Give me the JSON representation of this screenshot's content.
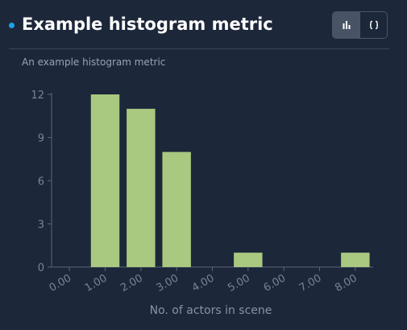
{
  "header": {
    "title": "Example histogram metric",
    "description": "An example histogram metric"
  },
  "view_toggle": {
    "histogram_icon": "bar-chart-icon",
    "code_icon": "code-braces-icon",
    "active": "histogram"
  },
  "colors": {
    "bar": "#a8c97f",
    "dot": "#1aa3e8",
    "background": "#1d273a"
  },
  "chart_data": {
    "type": "bar",
    "categories": [
      "0.00",
      "1.00",
      "2.00",
      "3.00",
      "4.00",
      "5.00",
      "6.00",
      "7.00",
      "8.00"
    ],
    "values": [
      0,
      12,
      11,
      8,
      0,
      1,
      0,
      0,
      1
    ],
    "xlabel": "No. of actors in scene",
    "ylabel": "",
    "ylim": [
      0,
      12
    ],
    "yticks": [
      "0",
      "3",
      "6",
      "9",
      "12"
    ],
    "grid": false,
    "legend": "none"
  }
}
